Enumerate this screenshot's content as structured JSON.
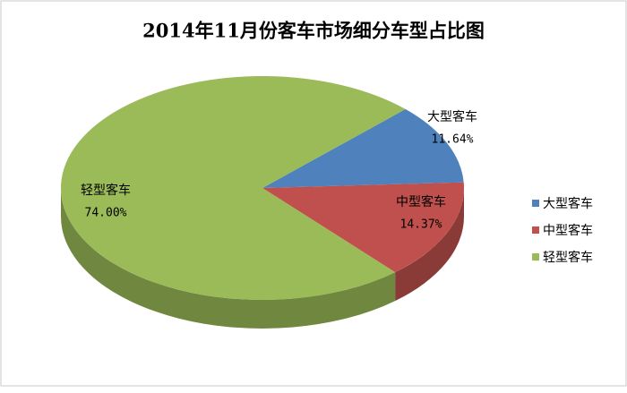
{
  "chart_data": {
    "type": "pie",
    "title": "2014年11月份客车市场细分车型占比图",
    "categories": [
      "大型客车",
      "中型客车",
      "轻型客车"
    ],
    "values": [
      11.64,
      14.37,
      74.0
    ],
    "value_labels": [
      "11.64%",
      "14.37%",
      "74.00%"
    ],
    "colors": [
      "#4f81bd",
      "#c0504d",
      "#9bbb59"
    ],
    "legend": "right"
  }
}
